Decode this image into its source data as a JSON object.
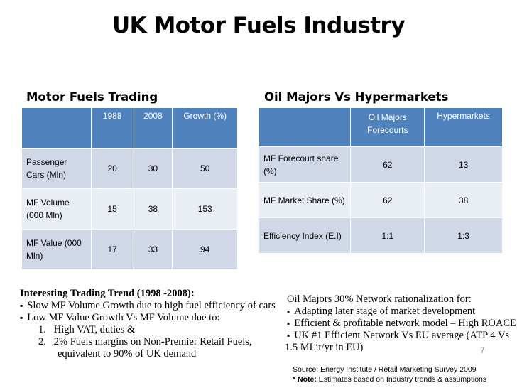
{
  "title": "UK Motor Fuels Industry",
  "left": {
    "heading": "Motor Fuels Trading",
    "columns": [
      "",
      "1988",
      "2008",
      "Growth (%)"
    ],
    "rows": [
      {
        "label": "Passenger Cars (Mln)",
        "c1": "20",
        "c2": "30",
        "c3": "50"
      },
      {
        "label": "MF Volume (000 Mln)",
        "c1": "15",
        "c2": "38",
        "c3": "153"
      },
      {
        "label": "MF Value (000 Mln)",
        "c1": "17",
        "c2": "33",
        "c3": "94"
      }
    ]
  },
  "right": {
    "heading": "Oil Majors Vs Hypermarkets",
    "columns": [
      "",
      "Oil Majors Forecourts",
      "Hypermarkets"
    ],
    "rows": [
      {
        "label": "MF Forecourt share (%)",
        "c1": "62",
        "c2": "13"
      },
      {
        "label": "MF Market Share (%)",
        "c1": "62",
        "c2": "38"
      },
      {
        "label": "Efficiency Index (E.I)",
        "c1": "1:1",
        "c2": "1:3"
      }
    ]
  },
  "trend": {
    "heading": "Interesting Trading Trend (1998 -2008):",
    "b1": "Slow MF Volume Growth due to high fuel efficiency of cars",
    "b2": "Low MF Value Growth Vs MF Volume due to:",
    "n1": "1.   High VAT, duties &",
    "n2": "2.   2% Fuels margins on Non-Premier Retail Fuels,",
    "n2b": "equivalent to 90% of UK demand"
  },
  "network": {
    "heading": "Oil Majors 30% Network rationalization for:",
    "b1": "Adapting later stage of market development",
    "b2": "Efficient & profitable network model – High ROACE",
    "b3": "UK #1 Efficient Network Vs EU average (ATP 4 Vs",
    "b3b": "1.5 MLit/yr in EU)"
  },
  "source": {
    "line1": "Source: Energy Institute / Retail Marketing Survey 2009",
    "note_label": "* Note:",
    "note_text": " Estimates based on Industry trends & assumptions"
  },
  "page_number": "7"
}
